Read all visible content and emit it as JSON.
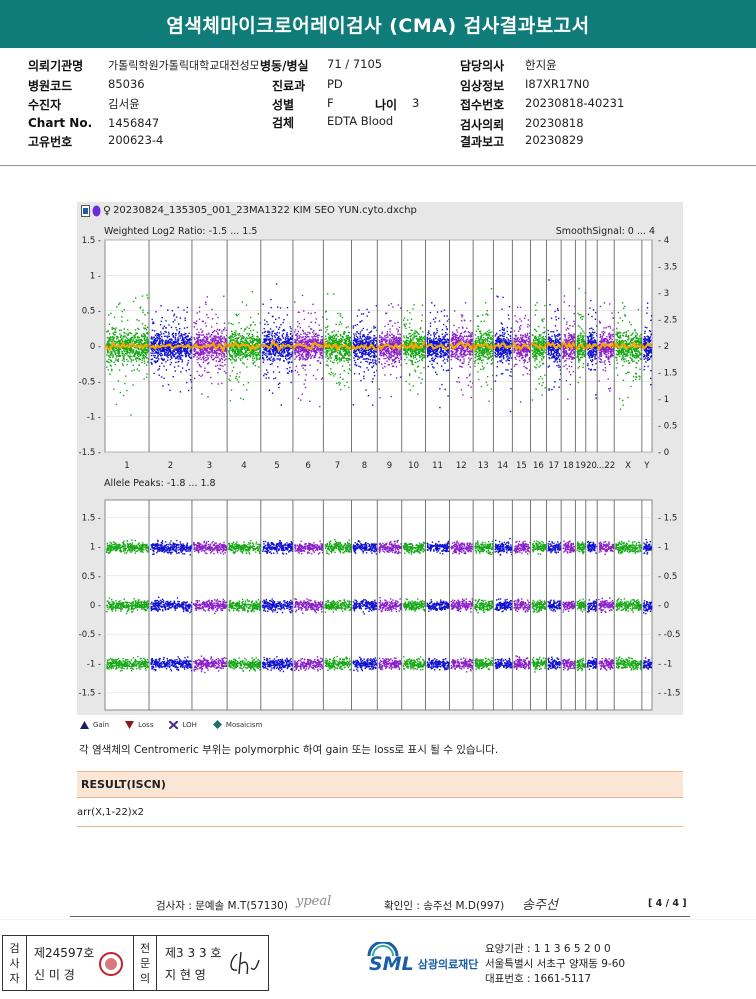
{
  "title": "염색체마이크로어레이검사 (CMA) 검사결과보고서",
  "patient": {
    "inst_label": "의뢰기관명",
    "inst_value": "가톨릭학원가톨릭대학교대전성모병원",
    "ward_label": "병동/병실",
    "ward_value": "71 / 7105",
    "doctor_label": "담당의사",
    "doctor_value": "한지윤",
    "hospcode_label": "병원코드",
    "hospcode_value": "85036",
    "dept_label": "진료과",
    "dept_value": "PD",
    "clinical_label": "임상정보",
    "clinical_value": "I87XR17N0",
    "name_label": "수진자",
    "name_value": "김서윤",
    "sex_label": "성별",
    "sex_value": "F",
    "age_label": "나이",
    "age_value": "3",
    "receipt_label": "접수번호",
    "receipt_value": "20230818-40231",
    "chart_label": "Chart No.",
    "chart_value": "1456847",
    "specimen_label": "검체",
    "specimen_value": "EDTA Blood",
    "request_label": "검사의뢰",
    "request_value": "20230818",
    "unique_label": "고유번호",
    "unique_value": "200623-4",
    "report_label": "결과보고",
    "report_value": "20230829"
  },
  "plot": {
    "file_name": "20230824_135305_001_23MA1322 KIM SEO YUN.cyto.dxchp",
    "top_label": "Weighted Log2 Ratio: -1.5 ... 1.5",
    "smooth_label": "SmoothSignal: 0 ... 4",
    "bottom_label": "Allele Peaks: -1.8 ... 1.8",
    "chromosomes": [
      "1",
      "2",
      "3",
      "4",
      "5",
      "6",
      "7",
      "8",
      "9",
      "10",
      "11",
      "12",
      "13",
      "14",
      "15",
      "16",
      "17",
      "18",
      "19",
      "20",
      "...22",
      "X",
      "Y"
    ],
    "top_left_ticks": [
      "1.5",
      "1",
      "0.5",
      "0",
      "-0.5",
      "-1",
      "-1.5"
    ],
    "top_right_ticks": [
      "4",
      "3.5",
      "3",
      "2.5",
      "2",
      "1.5",
      "1",
      "0.5",
      "0"
    ],
    "bottom_left_ticks": [
      "1.5",
      "1",
      "0.5",
      "0",
      "-0.5",
      "-1",
      "-1.5"
    ],
    "bottom_right_ticks": [
      "1.5",
      "1",
      "0.5",
      "0",
      "-0.5",
      "-1",
      "-1.5"
    ],
    "colors": {
      "blue": "#1010d0",
      "green": "#16a816",
      "purple": "#8a20c8",
      "orange": "#f5a800"
    }
  },
  "legend": {
    "gain": "Gain",
    "loss": "Loss",
    "loh": "LOH",
    "mosaicism": "Mosaicism"
  },
  "note": "각 염색체의 Centromeric 부위는 polymorphic 하여 gain 또는 loss로 표시 될 수 있습니다.",
  "result": {
    "header": "RESULT(ISCN)",
    "value": "arr(X,1-22)x2"
  },
  "signatures": {
    "examiner": "검사자 : 문예솔 M.T(57130)",
    "examiner_sig": "ypeal",
    "confirmer": "확인인 : 송주선 M.D(997)",
    "confirmer_sig": "송주선",
    "page": "[ 4 / 4 ]"
  },
  "footer": {
    "stamp_v1": [
      "검",
      "사",
      "자"
    ],
    "stamp_v2": [
      "전",
      "문",
      "의"
    ],
    "license1": "제24597호",
    "person1": "신 미 경",
    "license2": "제3 3 3 호",
    "person2": "지 현 영",
    "org_logo": "SML",
    "org_name": "삼광의료재단",
    "care_code": "요양기관 : 1 1 3 6 5 2 0 0",
    "address": "서울특별시 서초구 양재동 9-60",
    "phone": "대표번호 : 1661-5117"
  }
}
